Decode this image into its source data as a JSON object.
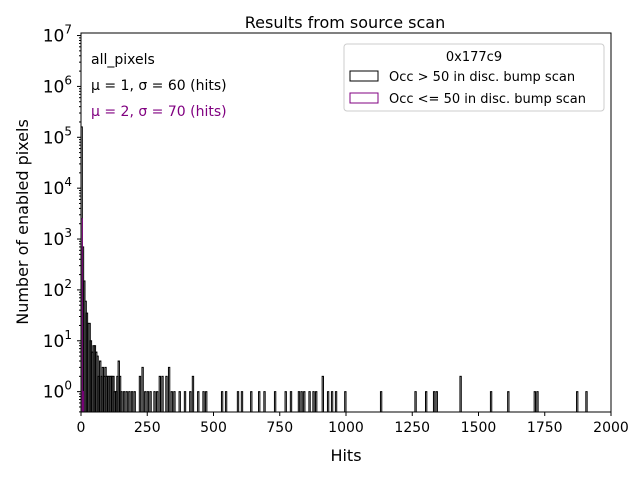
{
  "chart_data": {
    "type": "histogram",
    "title": "Results from source scan",
    "xlabel": "Hits",
    "ylabel": "Number of enabled pixels",
    "xlim": [
      0,
      2000
    ],
    "ylim_log10": [
      -0.4,
      7.05
    ],
    "y_scale": "log",
    "x_ticks": [
      0,
      250,
      500,
      750,
      1000,
      1250,
      1500,
      1750,
      2000
    ],
    "x_tick_labels": [
      "0",
      "250",
      "500",
      "750",
      "1000",
      "1250",
      "1500",
      "1750",
      "2000"
    ],
    "y_tick_exponents": [
      0,
      1,
      2,
      3,
      4,
      5,
      6,
      7
    ],
    "annotations": {
      "label": "all_pixels",
      "stats_black": "μ = 1, σ = 60 (hits)",
      "stats_purple": "μ = 2, σ = 70 (hits)"
    },
    "legend": {
      "title": "0x177c9",
      "placement": "top-right",
      "entries": [
        {
          "label": "Occ > 50 in disc. bump scan",
          "color": "#000000"
        },
        {
          "label": "Occ <= 50 in disc. bump scan",
          "color": "#800080"
        }
      ]
    },
    "bin_width": 5,
    "series": [
      {
        "name": "Occ > 50 in disc. bump scan",
        "color": "#000000",
        "bins": [
          [
            0,
            160000
          ],
          [
            5,
            700
          ],
          [
            10,
            150
          ],
          [
            15,
            60
          ],
          [
            20,
            35
          ],
          [
            25,
            22
          ],
          [
            30,
            22
          ],
          [
            35,
            10
          ],
          [
            40,
            6
          ],
          [
            45,
            8
          ],
          [
            50,
            8
          ],
          [
            55,
            6
          ],
          [
            60,
            5
          ],
          [
            65,
            2
          ],
          [
            70,
            4
          ],
          [
            75,
            2
          ],
          [
            80,
            3
          ],
          [
            85,
            2
          ],
          [
            90,
            3
          ],
          [
            95,
            2
          ],
          [
            100,
            2
          ],
          [
            105,
            2
          ],
          [
            110,
            2
          ],
          [
            115,
            2
          ],
          [
            120,
            2
          ],
          [
            125,
            1
          ],
          [
            130,
            1
          ],
          [
            135,
            2
          ],
          [
            140,
            4
          ],
          [
            145,
            2
          ],
          [
            150,
            1
          ],
          [
            160,
            1
          ],
          [
            170,
            1
          ],
          [
            180,
            1
          ],
          [
            190,
            1
          ],
          [
            200,
            1
          ],
          [
            220,
            2
          ],
          [
            230,
            3
          ],
          [
            240,
            1
          ],
          [
            250,
            1
          ],
          [
            260,
            1
          ],
          [
            275,
            1
          ],
          [
            285,
            1
          ],
          [
            295,
            2
          ],
          [
            305,
            2
          ],
          [
            320,
            2
          ],
          [
            330,
            3
          ],
          [
            340,
            1
          ],
          [
            350,
            1
          ],
          [
            370,
            1
          ],
          [
            390,
            1
          ],
          [
            410,
            1
          ],
          [
            420,
            2
          ],
          [
            440,
            1
          ],
          [
            460,
            1
          ],
          [
            470,
            1
          ],
          [
            530,
            1
          ],
          [
            545,
            1
          ],
          [
            590,
            1
          ],
          [
            605,
            1
          ],
          [
            640,
            1
          ],
          [
            670,
            1
          ],
          [
            690,
            1
          ],
          [
            730,
            1
          ],
          [
            770,
            1
          ],
          [
            790,
            1
          ],
          [
            820,
            1
          ],
          [
            830,
            1
          ],
          [
            840,
            1
          ],
          [
            860,
            1
          ],
          [
            875,
            1
          ],
          [
            885,
            1
          ],
          [
            910,
            2
          ],
          [
            930,
            1
          ],
          [
            945,
            1
          ],
          [
            960,
            1
          ],
          [
            995,
            1
          ],
          [
            1130,
            1
          ],
          [
            1260,
            1
          ],
          [
            1300,
            1
          ],
          [
            1330,
            1
          ],
          [
            1340,
            1
          ],
          [
            1430,
            2
          ],
          [
            1545,
            1
          ],
          [
            1610,
            1
          ],
          [
            1710,
            1
          ],
          [
            1720,
            1
          ],
          [
            1870,
            1
          ],
          [
            1905,
            1
          ]
        ]
      },
      {
        "name": "Occ <= 50 in disc. bump scan",
        "color": "#800080",
        "bins": [
          [
            0,
            2500
          ],
          [
            5,
            1
          ],
          [
            10,
            0
          ]
        ]
      }
    ]
  }
}
